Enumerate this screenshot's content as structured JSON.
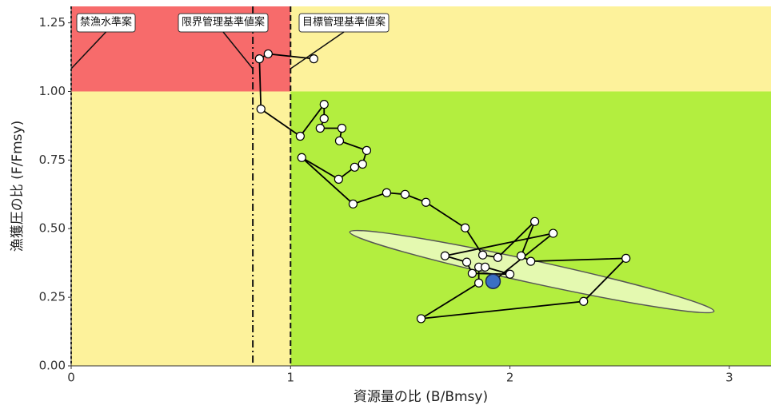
{
  "chart_data": {
    "type": "line",
    "x_label": "資源量の比 (B/Bmsy)",
    "y_label": "漁獲圧の比 (F/Fmsy)",
    "xlim": [
      0,
      3.19
    ],
    "ylim": [
      0,
      1.31
    ],
    "xticks": [
      0,
      1,
      2,
      3
    ],
    "yticks": [
      {
        "value": 0,
        "label": "0.00"
      },
      {
        "value": 0.25,
        "label": "0.25"
      },
      {
        "value": 0.5,
        "label": "0.50"
      },
      {
        "value": 0.75,
        "label": "0.75"
      },
      {
        "value": 1,
        "label": "1.00"
      },
      {
        "value": 1.25,
        "label": "1.25"
      }
    ],
    "zones": [
      {
        "x": [
          0,
          1
        ],
        "y": [
          1,
          1.31
        ],
        "color": "#f76b6b"
      },
      {
        "x": [
          1,
          3.19
        ],
        "y": [
          1,
          1.31
        ],
        "color": "#fdf29b"
      },
      {
        "x": [
          0,
          1
        ],
        "y": [
          0,
          1
        ],
        "color": "#fdf29b"
      },
      {
        "x": [
          1,
          3.19
        ],
        "y": [
          0,
          1
        ],
        "color": "#b3ee3f"
      }
    ],
    "reference_lines": [
      {
        "label": "禁漁水準案",
        "x": 0,
        "dash": "3,3"
      },
      {
        "label": "限界管理基準値案",
        "x": 0.828,
        "dash": "9,4,2,4"
      },
      {
        "label": "目標管理基準値案",
        "x": 1,
        "dash": "7,4"
      }
    ],
    "series": [
      {
        "color": "#000000",
        "x": [
          1.106,
          0.898,
          0.858,
          0.865,
          1.044,
          1.153,
          1.153,
          1.135,
          1.234,
          1.223,
          1.347,
          1.328,
          1.292,
          1.219,
          1.051,
          1.285,
          1.438,
          1.522,
          1.617,
          1.796,
          1.876,
          1.945,
          2.113,
          2.051,
          2.095,
          2.529,
          2.336,
          1.595,
          1.858,
          1.858,
          1.887,
          2.0,
          1.828,
          1.803,
          1.704,
          2.197,
          1.923
        ],
        "values": [
          1.119,
          1.137,
          1.119,
          0.936,
          0.837,
          0.953,
          0.901,
          0.866,
          0.866,
          0.82,
          0.785,
          0.735,
          0.724,
          0.68,
          0.759,
          0.59,
          0.631,
          0.625,
          0.596,
          0.503,
          0.404,
          0.395,
          0.526,
          0.401,
          0.381,
          0.392,
          0.235,
          0.172,
          0.302,
          0.36,
          0.36,
          0.334,
          0.337,
          0.378,
          0.401,
          0.483,
          0.308
        ]
      }
    ],
    "current": {
      "x": 1.923,
      "y": 0.308,
      "color": "#3a6fc4"
    }
  }
}
